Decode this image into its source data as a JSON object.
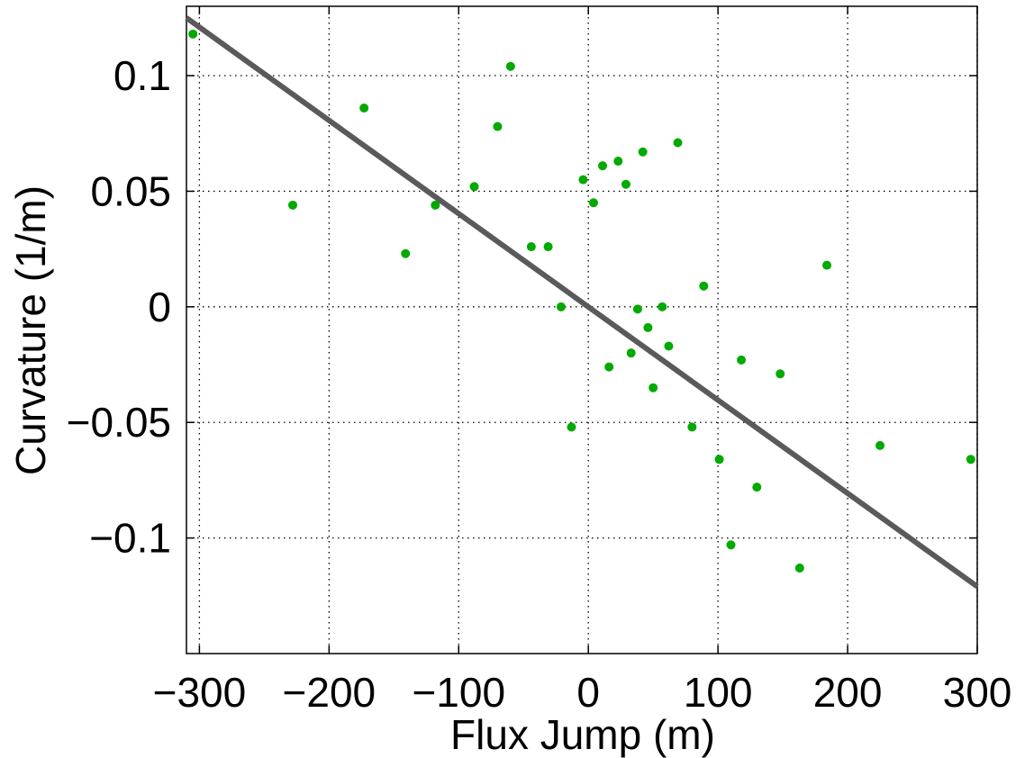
{
  "chart_data": {
    "type": "scatter",
    "title": "",
    "xlabel": "Flux Jump (m)",
    "ylabel": "Curvature (1/m)",
    "xlim": [
      -310,
      300
    ],
    "ylim": [
      -0.15,
      0.13
    ],
    "x_ticks": [
      -300,
      -200,
      -100,
      0,
      100,
      200,
      300
    ],
    "x_tick_labels": [
      "−300",
      "−200",
      "−100",
      "0",
      "100",
      "200",
      "300"
    ],
    "y_ticks": [
      -0.1,
      -0.05,
      0,
      0.05,
      0.1
    ],
    "y_tick_labels": [
      "−0.1",
      "−0.05",
      "0",
      "0.05",
      "0.1"
    ],
    "grid": true,
    "legend": "none",
    "point_color": "#00aa00",
    "fit_line_color": "#5a5a5a",
    "points": [
      {
        "x": -305,
        "y": 0.118
      },
      {
        "x": -228,
        "y": 0.044
      },
      {
        "x": -173,
        "y": 0.086
      },
      {
        "x": -141,
        "y": 0.023
      },
      {
        "x": -118,
        "y": 0.044
      },
      {
        "x": -88,
        "y": 0.052
      },
      {
        "x": -70,
        "y": 0.078
      },
      {
        "x": -60,
        "y": 0.104
      },
      {
        "x": -44,
        "y": 0.026
      },
      {
        "x": -31,
        "y": 0.026
      },
      {
        "x": -21,
        "y": 0.0
      },
      {
        "x": -13,
        "y": -0.052
      },
      {
        "x": -4,
        "y": 0.055
      },
      {
        "x": 4,
        "y": 0.045
      },
      {
        "x": 11,
        "y": 0.061
      },
      {
        "x": 16,
        "y": -0.026
      },
      {
        "x": 23,
        "y": 0.063
      },
      {
        "x": 29,
        "y": 0.053
      },
      {
        "x": 33,
        "y": -0.02
      },
      {
        "x": 38,
        "y": -0.001
      },
      {
        "x": 42,
        "y": 0.067
      },
      {
        "x": 46,
        "y": -0.009
      },
      {
        "x": 50,
        "y": -0.035
      },
      {
        "x": 57,
        "y": 0.0
      },
      {
        "x": 62,
        "y": -0.017
      },
      {
        "x": 69,
        "y": 0.071
      },
      {
        "x": 80,
        "y": -0.052
      },
      {
        "x": 89,
        "y": 0.009
      },
      {
        "x": 101,
        "y": -0.066
      },
      {
        "x": 110,
        "y": -0.103
      },
      {
        "x": 118,
        "y": -0.023
      },
      {
        "x": 130,
        "y": -0.078
      },
      {
        "x": 148,
        "y": -0.029
      },
      {
        "x": 163,
        "y": -0.113
      },
      {
        "x": 184,
        "y": 0.018
      },
      {
        "x": 225,
        "y": -0.06
      },
      {
        "x": 295,
        "y": -0.066
      }
    ],
    "fit_line": {
      "x": [
        -310,
        300
      ],
      "y": [
        0.125,
        -0.121
      ]
    }
  }
}
